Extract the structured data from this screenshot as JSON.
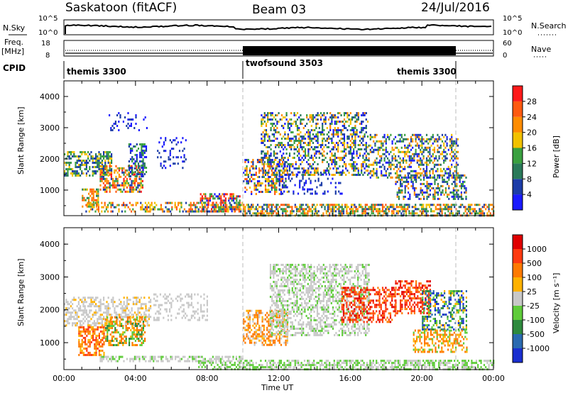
{
  "header": {
    "station": "Saskatoon (fitACF)",
    "beam": "Beam 03",
    "date": "24/Jul/2016"
  },
  "noise_panel": {
    "left_label": "N.Sky",
    "right_label": "N.Search",
    "left_ticks": [
      "10^5",
      "10^0"
    ],
    "right_ticks": [
      "10^5",
      "10^0"
    ]
  },
  "freq_panel": {
    "left_label_1": "Freq.",
    "left_label_2": "[MHz]",
    "right_label": "Nave",
    "left_ticks": [
      "18",
      "8"
    ],
    "right_ticks": [
      "60",
      "0"
    ]
  },
  "cpid_panel": {
    "label": "CPID",
    "segments": [
      {
        "name": "themis 3300",
        "start_hour": 0,
        "end_hour": 10
      },
      {
        "name": "twofsound 3503",
        "start_hour": 10,
        "end_hour": 22
      },
      {
        "name": "themis 3300",
        "start_hour": 22,
        "end_hour": 24
      }
    ]
  },
  "chart_data": [
    {
      "type": "heatmap",
      "title": "",
      "xlabel": "",
      "ylabel": "Slant Range [km]",
      "xlim": [
        0,
        24
      ],
      "ylim": [
        180,
        4500
      ],
      "yticks": [
        "1000",
        "2000",
        "3000",
        "4000"
      ],
      "colorbar": {
        "label": "Power [dB]",
        "ticks": [
          "4",
          "8",
          "12",
          "16",
          "20",
          "24",
          "28"
        ],
        "colors": [
          "#1a1aff",
          "#1c3ca8",
          "#2a7a5a",
          "#3aa040",
          "#f2c200",
          "#ff8c00",
          "#ff5a10",
          "#ff1a1a"
        ]
      },
      "echo_regions": [
        {
          "t0": 0.0,
          "t1": 2.7,
          "r0": 1450,
          "r1": 2250,
          "density": 0.55,
          "levels": [
            1,
            2,
            3,
            4
          ]
        },
        {
          "t0": 1.0,
          "t1": 1.9,
          "r0": 500,
          "r1": 1050,
          "density": 0.6,
          "levels": [
            2,
            3,
            4,
            5,
            6
          ]
        },
        {
          "t0": 2.0,
          "t1": 4.4,
          "r0": 950,
          "r1": 1800,
          "density": 0.55,
          "levels": [
            1,
            3,
            4,
            5,
            6,
            7
          ]
        },
        {
          "t0": 3.6,
          "t1": 4.6,
          "r0": 1450,
          "r1": 2500,
          "density": 0.45,
          "levels": [
            0,
            1,
            2,
            3
          ]
        },
        {
          "t0": 2.5,
          "t1": 4.6,
          "r0": 2900,
          "r1": 3500,
          "density": 0.15,
          "levels": [
            0,
            1
          ]
        },
        {
          "t0": 5.2,
          "t1": 6.8,
          "r0": 1700,
          "r1": 2700,
          "density": 0.18,
          "levels": [
            0,
            1
          ]
        },
        {
          "t0": 7.6,
          "t1": 9.8,
          "r0": 300,
          "r1": 900,
          "density": 0.6,
          "levels": [
            0,
            1,
            3,
            5,
            6,
            7
          ]
        },
        {
          "t0": 1.2,
          "t1": 10.0,
          "r0": 280,
          "r1": 620,
          "density": 0.45,
          "levels": [
            1,
            3,
            4,
            5,
            6
          ]
        },
        {
          "t0": 10.0,
          "t1": 12.5,
          "r0": 900,
          "r1": 2000,
          "density": 0.45,
          "levels": [
            0,
            1,
            3,
            4,
            5,
            6
          ]
        },
        {
          "t0": 11.0,
          "t1": 17.0,
          "r0": 1500,
          "r1": 3500,
          "density": 0.4,
          "levels": [
            0,
            1,
            2,
            3,
            4,
            5
          ]
        },
        {
          "t0": 12.0,
          "t1": 15.5,
          "r0": 900,
          "r1": 1600,
          "density": 0.22,
          "levels": [
            0,
            1
          ]
        },
        {
          "t0": 17.0,
          "t1": 22.0,
          "r0": 1400,
          "r1": 2800,
          "density": 0.45,
          "levels": [
            0,
            1,
            2,
            3,
            4,
            5
          ]
        },
        {
          "t0": 18.5,
          "t1": 22.5,
          "r0": 700,
          "r1": 1500,
          "density": 0.45,
          "levels": [
            0,
            1,
            2,
            3,
            5
          ]
        },
        {
          "t0": 10.0,
          "t1": 24.0,
          "r0": 180,
          "r1": 560,
          "density": 0.6,
          "levels": [
            1,
            2,
            3,
            4,
            5,
            6
          ]
        }
      ]
    },
    {
      "type": "heatmap",
      "title": "",
      "xlabel": "Time UT",
      "ylabel": "Slant Range [km]",
      "xlim": [
        0,
        24
      ],
      "ylim": [
        180,
        4500
      ],
      "xticks": [
        "00:00",
        "04:00",
        "08:00",
        "12:00",
        "16:00",
        "20:00",
        "00:00"
      ],
      "yticks": [
        "1000",
        "2000",
        "3000",
        "4000"
      ],
      "colorbar": {
        "label": "Velocity [m s⁻¹]",
        "ticks": [
          "1000",
          "500",
          "100",
          "25",
          "-25",
          "-100",
          "-500",
          "-1000"
        ],
        "colors": [
          "#1a2fd0",
          "#2a6ab0",
          "#2e8a3e",
          "#5fcc3a",
          "#c8c8c8",
          "#ffb200",
          "#ff7a00",
          "#ff3a10",
          "#e00000"
        ]
      },
      "echo_regions": [
        {
          "t0": 0.0,
          "t1": 4.8,
          "r0": 1500,
          "r1": 2400,
          "density": 0.5,
          "levels": [
            4,
            4,
            4,
            5
          ]
        },
        {
          "t0": 0.8,
          "t1": 2.2,
          "r0": 600,
          "r1": 1500,
          "density": 0.6,
          "levels": [
            5,
            6,
            6,
            7
          ]
        },
        {
          "t0": 2.3,
          "t1": 4.5,
          "r0": 900,
          "r1": 1800,
          "density": 0.55,
          "levels": [
            6,
            6,
            5,
            2,
            3
          ]
        },
        {
          "t0": 5.0,
          "t1": 8.0,
          "r0": 1700,
          "r1": 2500,
          "density": 0.25,
          "levels": [
            4
          ]
        },
        {
          "t0": 2.0,
          "t1": 10.0,
          "r0": 420,
          "r1": 600,
          "density": 0.55,
          "levels": [
            4,
            4,
            3
          ]
        },
        {
          "t0": 7.5,
          "t1": 10.0,
          "r0": 180,
          "r1": 420,
          "density": 0.5,
          "levels": [
            3,
            3,
            4
          ]
        },
        {
          "t0": 10.0,
          "t1": 12.5,
          "r0": 900,
          "r1": 2000,
          "density": 0.5,
          "levels": [
            5,
            6,
            6,
            4
          ]
        },
        {
          "t0": 11.5,
          "t1": 17.0,
          "r0": 1200,
          "r1": 3400,
          "density": 0.5,
          "levels": [
            4,
            4,
            4,
            3
          ]
        },
        {
          "t0": 15.5,
          "t1": 18.5,
          "r0": 1600,
          "r1": 2700,
          "density": 0.5,
          "levels": [
            7,
            7,
            8,
            6
          ]
        },
        {
          "t0": 18.5,
          "t1": 20.5,
          "r0": 1900,
          "r1": 2900,
          "density": 0.5,
          "levels": [
            7,
            8,
            7,
            6
          ]
        },
        {
          "t0": 20.0,
          "t1": 22.5,
          "r0": 1400,
          "r1": 2600,
          "density": 0.45,
          "levels": [
            0,
            1,
            2,
            3,
            5
          ]
        },
        {
          "t0": 19.5,
          "t1": 22.5,
          "r0": 700,
          "r1": 1400,
          "density": 0.45,
          "levels": [
            3,
            5,
            6,
            6
          ]
        },
        {
          "t0": 10.0,
          "t1": 24.0,
          "r0": 180,
          "r1": 480,
          "density": 0.6,
          "levels": [
            3,
            3,
            4,
            4
          ]
        }
      ]
    }
  ]
}
